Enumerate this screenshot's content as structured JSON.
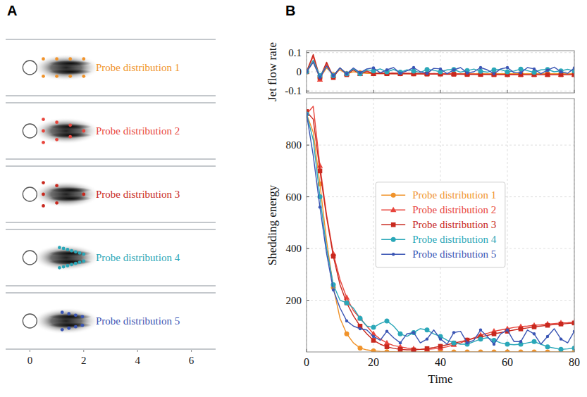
{
  "chart_data": [
    {
      "type": "scatter",
      "panel": "A",
      "annotation": "Probe distribution 1",
      "color": "#f0932b",
      "marker": "circle",
      "xlim": [
        -0.9,
        6.9
      ],
      "ylim": [
        -1,
        1
      ],
      "tick_labels": false,
      "x": [
        0.5,
        1,
        1.5,
        2,
        0.5,
        1,
        1.5,
        2
      ],
      "values": [
        0.3,
        0.3,
        0.3,
        0.3,
        -0.3,
        -0.3,
        -0.3,
        -0.3
      ]
    },
    {
      "type": "scatter",
      "annotation": "Probe distribution 2",
      "color": "#e8453c",
      "marker": "circle",
      "xlim": [
        -0.9,
        6.9
      ],
      "ylim": [
        -1,
        1
      ],
      "tick_labels": false,
      "x": [
        0.5,
        0.5,
        0.5,
        1,
        1,
        1.5,
        1.5,
        2
      ],
      "values": [
        0.4,
        0,
        -0.4,
        0.3,
        -0.3,
        0.2,
        -0.2,
        0
      ]
    },
    {
      "type": "scatter",
      "annotation": "Probe distribution 3",
      "color": "#c8281e",
      "marker": "circle",
      "xlim": [
        -0.9,
        6.9
      ],
      "ylim": [
        -1,
        1
      ],
      "tick_labels": false,
      "x": [
        0.5,
        0.5,
        0.5,
        1,
        1,
        2
      ],
      "values": [
        0.4,
        0,
        -0.4,
        0.3,
        -0.3,
        0
      ]
    },
    {
      "type": "scatter",
      "annotation": "Probe distribution 4",
      "color": "#2aa7b8",
      "marker": "circle",
      "xlim": [
        -0.9,
        6.9
      ],
      "ylim": [
        -1,
        1
      ],
      "tick_labels": false,
      "x": [
        1.1,
        1.25,
        1.4,
        1.55,
        1.7,
        1.85,
        2.0,
        1.1,
        1.25,
        1.4,
        1.55,
        1.7,
        1.85,
        2.0
      ],
      "values": [
        0.35,
        0.32,
        0.28,
        0.24,
        0.2,
        0.16,
        0.12,
        -0.35,
        -0.32,
        -0.28,
        -0.24,
        -0.2,
        -0.16,
        -0.12
      ]
    },
    {
      "type": "scatter",
      "annotation": "Probe distribution 5",
      "color": "#3a55b4",
      "marker": "circle",
      "xlim": [
        -0.9,
        6.9
      ],
      "ylim": [
        -1,
        1
      ],
      "tick_labels": "x",
      "xticks": [
        0,
        2,
        4,
        6
      ],
      "x": [
        1.2,
        1.45,
        1.7,
        1.95,
        1.2,
        1.45,
        1.7,
        1.95
      ],
      "values": [
        0.3,
        0.25,
        0.2,
        0.15,
        -0.3,
        -0.25,
        -0.2,
        -0.15
      ]
    },
    {
      "type": "line",
      "panel": "B",
      "y_label": "Jet flow rate",
      "grid": true,
      "tick_labels": "y",
      "xlim": [
        0,
        80
      ],
      "xticks": [
        0,
        20,
        40,
        60,
        80
      ],
      "ylim": [
        -0.11,
        0.11
      ],
      "yticks": [
        -0.1,
        0,
        0.1
      ],
      "x": [
        0,
        2,
        4,
        6,
        8,
        10,
        12,
        14,
        16,
        18,
        20,
        22,
        24,
        26,
        28,
        30,
        32,
        34,
        36,
        38,
        40,
        42,
        44,
        46,
        48,
        50,
        52,
        54,
        56,
        58,
        60,
        62,
        64,
        66,
        68,
        70,
        72,
        74,
        76,
        78,
        80
      ],
      "series": [
        {
          "color": "#f0932b",
          "marker": "circle",
          "values": [
            0,
            0.05,
            -0.03,
            0.02,
            -0.015,
            0.01,
            -0.01,
            0,
            -0.005,
            -0.008,
            -0.008,
            -0.009,
            -0.009,
            -0.01,
            -0.01,
            -0.01,
            -0.01,
            -0.01,
            -0.01,
            -0.01,
            -0.01,
            -0.01,
            -0.01,
            -0.01,
            -0.01,
            -0.01,
            -0.01,
            -0.01,
            -0.01,
            -0.01,
            -0.01,
            -0.01,
            -0.01,
            -0.01,
            -0.01,
            -0.01,
            -0.01,
            -0.01,
            -0.01,
            -0.01,
            -0.01
          ]
        },
        {
          "color": "#e8453c",
          "marker": "triangle",
          "values": [
            0,
            0.08,
            -0.04,
            0.04,
            -0.02,
            0.02,
            -0.01,
            0.01,
            -0.01,
            0.005,
            -0.01,
            -0.005,
            -0.008,
            -0.006,
            -0.008,
            -0.007,
            -0.009,
            -0.008,
            -0.01,
            -0.009,
            -0.01,
            -0.01,
            -0.011,
            -0.011,
            -0.012,
            -0.012,
            -0.013,
            -0.013,
            -0.013,
            -0.014,
            -0.014,
            -0.014,
            -0.015,
            -0.015,
            -0.015,
            -0.015,
            -0.015,
            -0.015,
            -0.015,
            -0.015,
            -0.015
          ]
        },
        {
          "color": "#c8281e",
          "marker": "square",
          "values": [
            0,
            0.09,
            -0.03,
            0.05,
            -0.03,
            0.02,
            -0.015,
            0.01,
            -0.01,
            0,
            -0.01,
            -0.008,
            -0.01,
            -0.009,
            -0.01,
            -0.01,
            -0.011,
            -0.011,
            -0.012,
            -0.012,
            -0.012,
            -0.013,
            -0.013,
            -0.013,
            -0.014,
            -0.014,
            -0.014,
            -0.014,
            -0.015,
            -0.015,
            -0.015,
            -0.015,
            -0.015,
            -0.015,
            -0.015,
            -0.015,
            -0.015,
            -0.015,
            -0.015,
            -0.015,
            -0.015
          ]
        },
        {
          "color": "#2aa7b8",
          "marker": "circle",
          "values": [
            0,
            0.06,
            -0.02,
            0.03,
            -0.02,
            0.02,
            -0.01,
            0.015,
            -0.01,
            0.01,
            0.005,
            0.015,
            0,
            0.012,
            -0.002,
            0.01,
            0.004,
            -0.003,
            0.012,
            0.008,
            0,
            0.01,
            0.012,
            -0.002,
            0.006,
            0.014,
            0.003,
            -0.002,
            0.01,
            0.012,
            0,
            0.004,
            0.014,
            0.006,
            -0.003,
            0.01,
            0.012,
            0,
            0.005,
            0.013,
            0.004
          ]
        },
        {
          "color": "#3a55b4",
          "marker": "point",
          "values": [
            0,
            0.05,
            -0.03,
            0.03,
            -0.02,
            0.02,
            -0.01,
            0.02,
            -0.005,
            0.015,
            0.02,
            -0.005,
            0.01,
            0.022,
            -0.008,
            0.005,
            0.022,
            0,
            -0.008,
            0.018,
            0.015,
            -0.01,
            0.01,
            0.022,
            -0.006,
            0,
            0.022,
            0.01,
            -0.01,
            0.015,
            0.022,
            -0.005,
            -0.005,
            0.022,
            0.015,
            -0.01,
            0.008,
            0.024,
            0,
            -0.008,
            0.02
          ]
        }
      ]
    },
    {
      "type": "line",
      "x_label": "Time",
      "y_label": "Shedding energy",
      "grid": true,
      "legend": "upper center",
      "xlim": [
        0,
        80
      ],
      "xticks": [
        0,
        20,
        40,
        60,
        80
      ],
      "ylim": [
        0,
        980
      ],
      "yticks": [
        200,
        400,
        600,
        800
      ],
      "x": [
        0,
        2,
        4,
        6,
        8,
        10,
        12,
        14,
        16,
        18,
        20,
        22,
        24,
        26,
        28,
        30,
        32,
        34,
        36,
        38,
        40,
        42,
        44,
        46,
        48,
        50,
        52,
        54,
        56,
        58,
        60,
        62,
        64,
        66,
        68,
        70,
        72,
        74,
        76,
        78,
        80
      ],
      "series": [
        {
          "name": "Probe distribution 1",
          "color": "#f0932b",
          "marker": "circle",
          "values": [
            920,
            850,
            650,
            430,
            250,
            130,
            70,
            35,
            15,
            8,
            4,
            2,
            1,
            1,
            0,
            0,
            0,
            0,
            0,
            0,
            0,
            0,
            0,
            0,
            0,
            0,
            0,
            0,
            0,
            0,
            0,
            0,
            0,
            0,
            0,
            0,
            0,
            0,
            0,
            0,
            0
          ]
        },
        {
          "name": "Probe distribution 2",
          "color": "#e8453c",
          "marker": "triangle",
          "values": [
            920,
            950,
            720,
            530,
            380,
            280,
            210,
            160,
            130,
            100,
            70,
            50,
            35,
            25,
            20,
            15,
            12,
            10,
            10,
            12,
            15,
            20,
            28,
            35,
            45,
            55,
            65,
            72,
            80,
            85,
            90,
            95,
            98,
            100,
            103,
            105,
            108,
            110,
            112,
            113,
            115
          ]
        },
        {
          "name": "Probe distribution 3",
          "color": "#c8281e",
          "marker": "square",
          "values": [
            930,
            900,
            700,
            520,
            370,
            260,
            190,
            140,
            100,
            70,
            45,
            30,
            20,
            14,
            10,
            8,
            8,
            10,
            13,
            17,
            22,
            28,
            34,
            40,
            46,
            52,
            58,
            64,
            70,
            75,
            80,
            85,
            89,
            93,
            97,
            100,
            103,
            106,
            108,
            110,
            112
          ]
        },
        {
          "name": "Probe distribution 4",
          "color": "#2aa7b8",
          "marker": "circle",
          "values": [
            920,
            820,
            600,
            400,
            260,
            200,
            190,
            170,
            130,
            100,
            95,
            110,
            120,
            100,
            70,
            60,
            75,
            90,
            85,
            70,
            60,
            45,
            35,
            30,
            30,
            40,
            50,
            55,
            45,
            35,
            30,
            28,
            30,
            35,
            40,
            30,
            20,
            15,
            10,
            12,
            15
          ]
        },
        {
          "name": "Probe distribution 5",
          "color": "#3a55b4",
          "marker": "point",
          "values": [
            920,
            760,
            560,
            380,
            240,
            170,
            120,
            100,
            90,
            85,
            60,
            45,
            80,
            55,
            35,
            70,
            75,
            35,
            50,
            85,
            50,
            30,
            75,
            80,
            35,
            45,
            85,
            60,
            30,
            70,
            85,
            40,
            40,
            85,
            70,
            30,
            60,
            90,
            50,
            35,
            80
          ]
        }
      ]
    }
  ]
}
